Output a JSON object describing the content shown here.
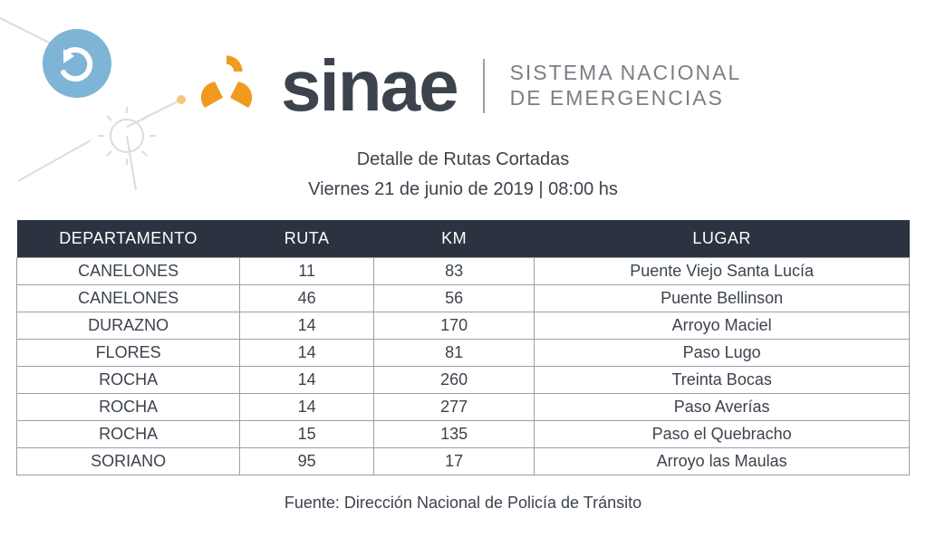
{
  "brand": {
    "name": "sinae",
    "subtitle_line1": "SISTEMA NACIONAL",
    "subtitle_line2": "DE EMERGENCIAS",
    "accent_color": "#f29a1f",
    "text_color": "#3c434d"
  },
  "decor": {
    "circle_color": "#7eb4d6",
    "circle_accent": "#ffffff",
    "dot_color": "#f5c77a",
    "line_color": "#d9dce0"
  },
  "title": {
    "line1": "Detalle de Rutas Cortadas",
    "line2": "Viernes 21 de junio de 2019 | 08:00 hs"
  },
  "table": {
    "header_bg": "#2c3340",
    "header_fg": "#ffffff",
    "border_color": "#9aa0a6",
    "columns": [
      "DEPARTAMENTO",
      "RUTA",
      "KM",
      "LUGAR"
    ],
    "rows": [
      {
        "departamento": "CANELONES",
        "ruta": "11",
        "km": "83",
        "lugar": "Puente Viejo Santa Lucía"
      },
      {
        "departamento": "CANELONES",
        "ruta": "46",
        "km": "56",
        "lugar": "Puente Bellinson"
      },
      {
        "departamento": "DURAZNO",
        "ruta": "14",
        "km": "170",
        "lugar": "Arroyo Maciel"
      },
      {
        "departamento": "FLORES",
        "ruta": "14",
        "km": "81",
        "lugar": "Paso Lugo"
      },
      {
        "departamento": "ROCHA",
        "ruta": "14",
        "km": "260",
        "lugar": "Treinta Bocas"
      },
      {
        "departamento": "ROCHA",
        "ruta": "14",
        "km": "277",
        "lugar": "Paso Averías"
      },
      {
        "departamento": "ROCHA",
        "ruta": "15",
        "km": "135",
        "lugar": "Paso el Quebracho"
      },
      {
        "departamento": "SORIANO",
        "ruta": "95",
        "km": "17",
        "lugar": "Arroyo las Maulas"
      }
    ]
  },
  "footer": {
    "text": "Fuente: Dirección Nacional de Policía de Tránsito"
  }
}
